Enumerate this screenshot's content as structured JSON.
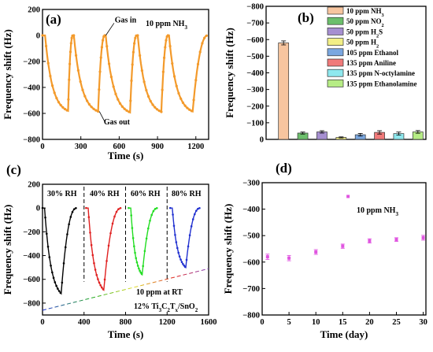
{
  "chart_data": [
    {
      "panel": "(a)",
      "type": "line",
      "annotation": "10 ppm NH3",
      "callouts": [
        "Gas in",
        "Gas out"
      ],
      "xlabel": "Time (s)",
      "ylabel": "Frequency shift (Hz)",
      "xlim": [
        0,
        1300
      ],
      "ylim": [
        -800,
        200
      ],
      "xticks": [
        0,
        300,
        600,
        900,
        1200
      ],
      "yticks": [
        200,
        0,
        -200,
        -400,
        -600,
        -800
      ],
      "color": "#f39a2b",
      "cycles": [
        {
          "start": 20,
          "min_time": 200,
          "min_value": -580
        },
        {
          "start": 245,
          "min_time": 435,
          "min_value": -585
        },
        {
          "start": 495,
          "min_time": 685,
          "min_value": -592
        },
        {
          "start": 745,
          "min_time": 930,
          "min_value": -588
        },
        {
          "start": 990,
          "min_time": 1175,
          "min_value": -585
        }
      ]
    },
    {
      "panel": "(b)",
      "type": "bar",
      "ylabel": "Frequency shift (Hz)",
      "ylim": [
        0,
        -800
      ],
      "yticks": [
        -800,
        -700,
        -600,
        -500,
        -400,
        -300,
        -200,
        -100,
        0
      ],
      "categories": [
        "10 ppm NH3",
        "50 ppm NO2",
        "50 ppm H2S",
        "50 ppm H2",
        "105 ppm Ethanol",
        "135 ppm Aniline",
        "135 ppm N-octylamine",
        "135 ppm Ethanolamine"
      ],
      "legend": [
        {
          "text": "10 ppm NH",
          "sub": "3",
          "color": "#f7c59f"
        },
        {
          "text": "50 ppm NO",
          "sub": "2",
          "color": "#6cbf6c"
        },
        {
          "text": "50 ppm H",
          "sub": "2",
          "tail": "S",
          "color": "#a68fd1"
        },
        {
          "text": "50 ppm H",
          "sub": "2",
          "color": "#f2ef86"
        },
        {
          "text": "105 ppm Ethanol",
          "color": "#7aa7e0"
        },
        {
          "text": "135 ppm Aniline",
          "color": "#f07a7a"
        },
        {
          "text": "135 ppm N-octylamine",
          "color": "#8ee8ee"
        },
        {
          "text": "135 ppm Ethanolamine",
          "color": "#b6ec85"
        }
      ],
      "values": [
        -580,
        -38,
        -45,
        -12,
        -28,
        -42,
        -35,
        -45
      ],
      "errors": [
        12,
        6,
        7,
        3,
        8,
        10,
        9,
        8
      ]
    },
    {
      "panel": "(c)",
      "type": "line",
      "rh_labels": [
        "30% RH",
        "40% RH",
        "60% RH",
        "80% RH"
      ],
      "note1": "10 ppm at RT",
      "note2": {
        "pre": "12% Ti",
        "s1": "3",
        "mid": "C",
        "s2": "2",
        "mid2": "T",
        "s3": "x",
        "post": "/SnO",
        "s4": "2"
      },
      "xlabel": "Time (s)",
      "ylabel": "Frequency shift (Hz)",
      "xlim": [
        0,
        1600
      ],
      "ylim": [
        -900,
        200
      ],
      "xticks": [
        0,
        400,
        800,
        1200,
        1600
      ],
      "yticks": [
        200,
        0,
        -200,
        -400,
        -600,
        -800
      ],
      "dividers": [
        400,
        800,
        1200
      ],
      "curves": [
        {
          "rh": "30% RH",
          "color": "#000000",
          "start": 20,
          "min_time": 180,
          "min_value": -720,
          "end": 330
        },
        {
          "rh": "40% RH",
          "color": "#e02020",
          "start": 440,
          "min_time": 590,
          "min_value": -690,
          "end": 760
        },
        {
          "rh": "60% RH",
          "color": "#22dd22",
          "start": 850,
          "min_time": 960,
          "min_value": -560,
          "end": 1110
        },
        {
          "rh": "80% RH",
          "color": "#2030d0",
          "start": 1250,
          "min_time": 1380,
          "min_value": -500,
          "end": 1520
        }
      ],
      "trend_line": {
        "from": [
          0,
          -860
        ],
        "to": [
          1600,
          -510
        ]
      }
    },
    {
      "panel": "(d)",
      "type": "scatter",
      "annotation": "10 ppm NH3",
      "xlabel": "Time (day)",
      "ylabel": "Frequency shift (Hz)",
      "xlim": [
        0,
        30.5
      ],
      "ylim": [
        -800,
        -300
      ],
      "xticks": [
        0,
        5,
        10,
        15,
        20,
        25,
        30
      ],
      "yticks": [
        -300,
        -400,
        -500,
        -600,
        -700,
        -800
      ],
      "color": "#e055e0",
      "x": [
        1,
        5,
        10,
        15,
        16,
        20,
        25,
        30
      ],
      "y": [
        -580,
        -585,
        -562,
        -540,
        -352,
        -520,
        -515,
        -508
      ],
      "err": [
        10,
        10,
        9,
        8,
        0,
        8,
        7,
        9
      ]
    }
  ]
}
